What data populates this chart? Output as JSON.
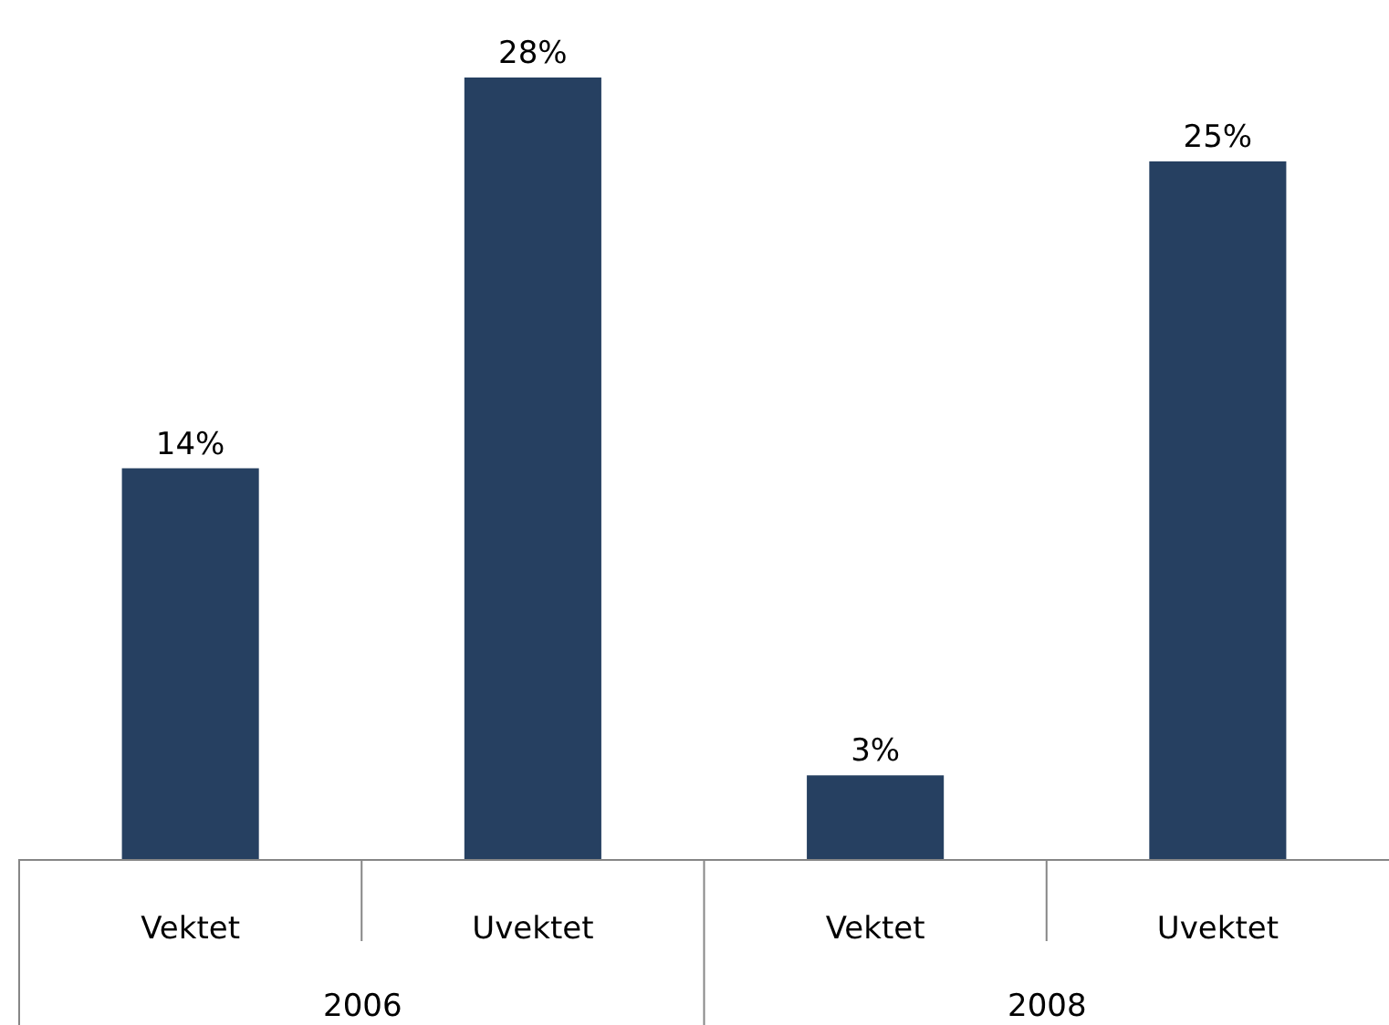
{
  "chart_data": {
    "type": "bar",
    "categories": [
      "Vektet",
      "Uvektet",
      "Vektet",
      "Uvektet"
    ],
    "values": [
      14,
      28,
      3,
      25
    ],
    "value_labels": [
      "14%",
      "28%",
      "3%",
      "25%"
    ],
    "color": "#264061",
    "annotations": [
      "2006",
      "2008"
    ]
  }
}
